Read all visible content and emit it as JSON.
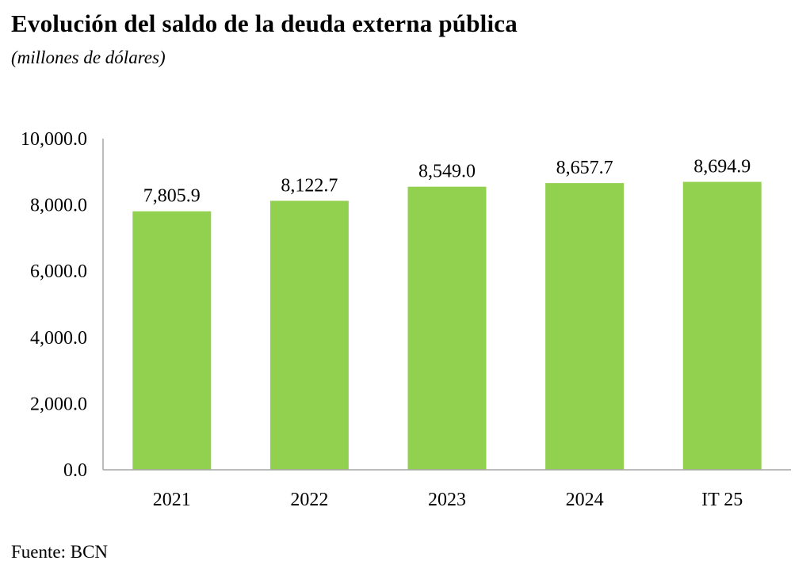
{
  "title": "Evolución del saldo de la deuda externa pública",
  "subtitle": "(millones de dólares)",
  "source": "Fuente: BCN",
  "chart_data": {
    "type": "bar",
    "categories": [
      "2021",
      "2022",
      "2023",
      "2024",
      "IT 25"
    ],
    "values": [
      7805.9,
      8122.7,
      8549.0,
      8657.7,
      8694.9
    ],
    "value_labels": [
      "7,805.9",
      "8,122.7",
      "8,549.0",
      "8,657.7",
      "8,694.9"
    ],
    "ylim": [
      0,
      10000
    ],
    "yticks": [
      0,
      2000,
      4000,
      6000,
      8000,
      10000
    ],
    "ytick_labels": [
      "0.0",
      "2,000.0",
      "4,000.0",
      "6,000.0",
      "8,000.0",
      "10,000.0"
    ],
    "xlabel": "",
    "ylabel": "",
    "grid": false,
    "legend": "none",
    "bar_color": "#92D050",
    "axis_color": "#A6A6A6"
  }
}
